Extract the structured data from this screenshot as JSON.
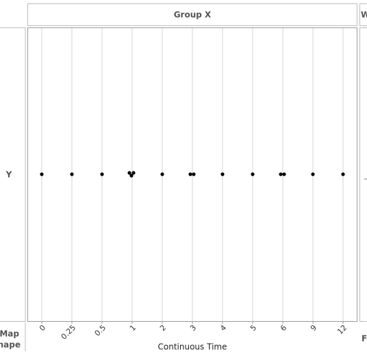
{
  "chart_data": {
    "type": "dot",
    "title": "Group X",
    "y_label": "Y",
    "x_label": "Continuous Time",
    "categories": [
      "0",
      "0.25",
      "0.5",
      "1",
      "2",
      "3",
      "4",
      "5",
      "6",
      "9",
      "12"
    ],
    "counts": [
      1,
      1,
      1,
      3,
      1,
      2,
      1,
      1,
      2,
      1,
      1
    ],
    "color": "#000000",
    "grid": true,
    "clipped_labels": [
      "W",
      "Fr",
      "Map",
      "Shape"
    ]
  }
}
